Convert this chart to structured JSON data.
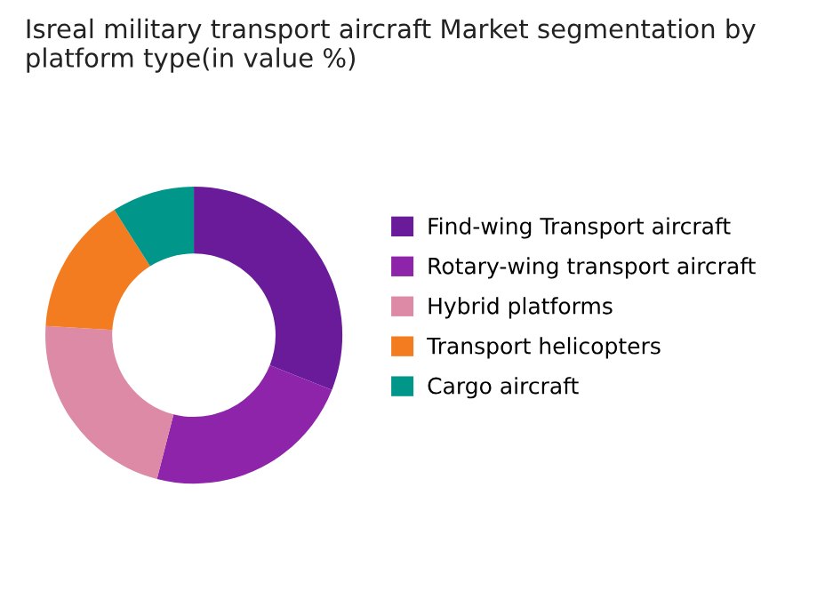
{
  "chart_data": {
    "type": "donut",
    "title": "Isreal military transport aircraft Market segmentation by platform type(in value %)",
    "categories": [
      "Find-wing Transport aircraft",
      "Rotary-wing transport aircraft",
      "Hybrid platforms",
      "Transport helicopters",
      "Cargo aircraft"
    ],
    "values": [
      31,
      23,
      22,
      15,
      9
    ],
    "colors": [
      "#6a1b9a",
      "#8e24aa",
      "#dc8aa5",
      "#f47c20",
      "#00968a"
    ],
    "legend": "right"
  }
}
